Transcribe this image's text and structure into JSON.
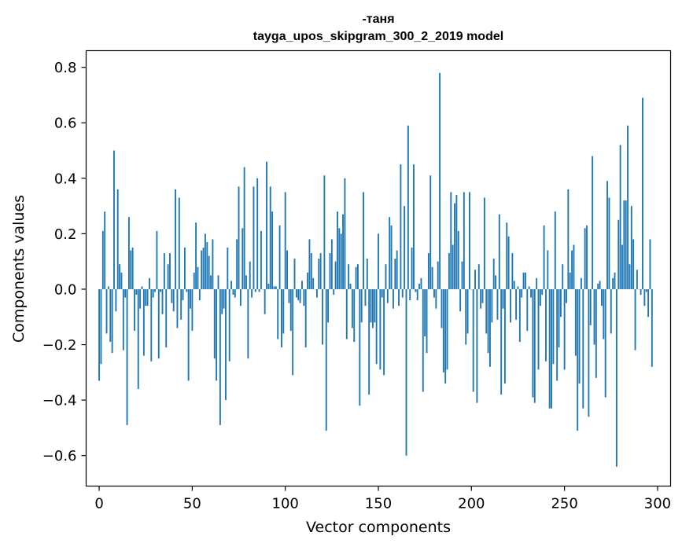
{
  "chart_data": {
    "type": "bar",
    "title": "-таня",
    "subtitle": "tayga_upos_skipgram_300_2_2019 model",
    "xlabel": "Vector components",
    "ylabel": "Components values",
    "xlim": [
      -7,
      307
    ],
    "ylim": [
      -0.71,
      0.86
    ],
    "xticks": [
      0,
      50,
      100,
      150,
      200,
      250,
      300
    ],
    "yticks": [
      -0.6,
      -0.4,
      -0.2,
      0.0,
      0.2,
      0.4,
      0.6,
      0.8
    ],
    "ytick_labels": [
      "−0.6",
      "−0.4",
      "−0.2",
      "0.0",
      "0.2",
      "0.4",
      "0.6",
      "0.8"
    ],
    "xtick_labels": [
      "0",
      "50",
      "100",
      "150",
      "200",
      "250",
      "300"
    ],
    "bar_color": "#1f77b4",
    "x_start": 0,
    "values": [
      -0.33,
      -0.27,
      0.21,
      0.28,
      -0.16,
      0.01,
      -0.19,
      -0.23,
      0.5,
      -0.08,
      0.36,
      0.09,
      0.06,
      -0.22,
      -0.03,
      -0.49,
      0.26,
      0.14,
      0.15,
      -0.15,
      -0.02,
      -0.36,
      -0.07,
      0.01,
      -0.24,
      -0.06,
      -0.06,
      0.04,
      -0.26,
      -0.03,
      -0.01,
      0.21,
      -0.25,
      -0.01,
      -0.09,
      0.13,
      -0.21,
      0.09,
      0.13,
      -0.05,
      -0.08,
      0.36,
      -0.14,
      0.33,
      -0.11,
      -0.04,
      0.15,
      -0.01,
      -0.33,
      -0.07,
      -0.15,
      0.06,
      0.24,
      0.08,
      -0.04,
      0.14,
      0.15,
      0.2,
      0.17,
      0.12,
      0.05,
      0.18,
      -0.25,
      -0.33,
      0.05,
      -0.49,
      -0.09,
      -0.07,
      -0.4,
      0.15,
      -0.26,
      0.03,
      -0.02,
      -0.03,
      0.18,
      0.37,
      -0.06,
      0.22,
      0.44,
      0.05,
      -0.25,
      0.1,
      -0.03,
      0.37,
      -0.01,
      0.4,
      -0.01,
      0.21,
      0.0,
      -0.09,
      0.46,
      0.02,
      0.37,
      0.28,
      0.01,
      0.01,
      -0.18,
      0.23,
      -0.21,
      -0.16,
      0.35,
      0.14,
      -0.05,
      -0.15,
      -0.31,
      0.11,
      -0.03,
      -0.04,
      -0.05,
      0.03,
      -0.06,
      -0.21,
      0.06,
      0.18,
      0.13,
      0.04,
      0.0,
      -0.03,
      0.11,
      0.13,
      -0.2,
      0.41,
      -0.51,
      -0.12,
      0.13,
      0.18,
      -0.02,
      0.1,
      0.28,
      0.22,
      0.2,
      0.27,
      0.4,
      -0.18,
      0.09,
      0.02,
      -0.14,
      -0.19,
      0.08,
      0.09,
      -0.42,
      -0.12,
      0.35,
      -0.06,
      0.11,
      -0.38,
      -0.12,
      -0.14,
      -0.12,
      -0.27,
      0.2,
      -0.29,
      -0.03,
      -0.31,
      0.09,
      -0.05,
      0.26,
      0.23,
      -0.07,
      0.11,
      0.14,
      -0.06,
      0.45,
      -0.03,
      0.3,
      -0.6,
      0.59,
      -0.04,
      0.15,
      0.45,
      -0.01,
      -0.04,
      0.02,
      0.04,
      -0.37,
      -0.17,
      -0.23,
      0.13,
      0.41,
      0.08,
      -0.03,
      -0.07,
      0.1,
      0.78,
      -0.14,
      -0.3,
      -0.34,
      -0.29,
      0.13,
      0.35,
      0.16,
      0.31,
      0.34,
      0.21,
      -0.08,
      0.1,
      0.35,
      -0.2,
      -0.16,
      0.35,
      0.0,
      -0.37,
      0.07,
      -0.41,
      0.09,
      -0.07,
      -0.05,
      0.33,
      -0.16,
      -0.23,
      -0.28,
      -0.12,
      0.11,
      0.05,
      -0.11,
      0.27,
      -0.38,
      -0.07,
      -0.34,
      0.24,
      0.19,
      -0.12,
      0.13,
      0.03,
      -0.11,
      0.01,
      -0.19,
      -0.03,
      0.06,
      0.06,
      -0.15,
      0.01,
      -0.03,
      -0.39,
      -0.41,
      0.04,
      -0.29,
      -0.06,
      -0.02,
      0.23,
      -0.26,
      0.14,
      -0.43,
      -0.43,
      -0.27,
      0.28,
      -0.33,
      -0.21,
      -0.1,
      0.09,
      -0.29,
      -0.05,
      0.36,
      0.06,
      0.14,
      0.16,
      -0.24,
      -0.51,
      -0.34,
      0.04,
      -0.43,
      0.22,
      0.23,
      -0.46,
      -0.13,
      0.48,
      -0.2,
      -0.32,
      0.02,
      0.03,
      -0.06,
      -0.18,
      -0.39,
      0.39,
      0.33,
      -0.16,
      0.04,
      0.06,
      -0.64,
      0.25,
      0.52,
      0.16,
      0.32,
      0.32,
      0.59,
      0.09,
      0.3,
      0.18,
      -0.22,
      0.07,
      0.0,
      -0.02,
      0.69,
      -0.06,
      -0.01,
      -0.1,
      0.18,
      -0.28
    ]
  }
}
